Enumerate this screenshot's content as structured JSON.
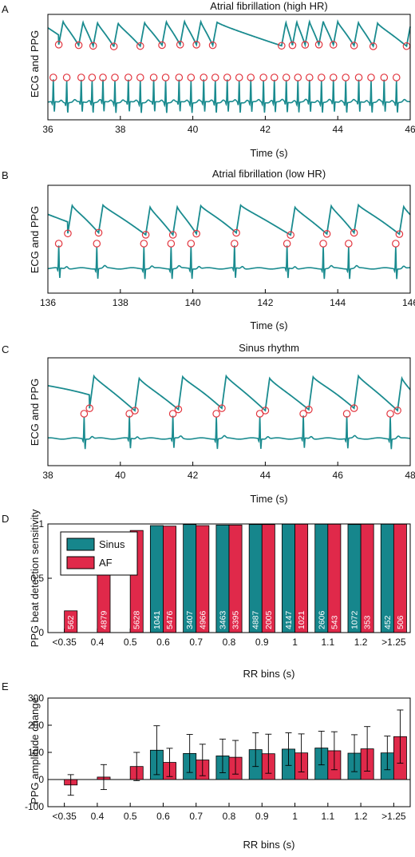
{
  "colors": {
    "trace": "#1a8b8f",
    "marker": "#e2363f",
    "sinus": "#16868c",
    "af": "#e0294a",
    "axis": "#000000"
  },
  "chart_data": [
    {
      "type": "line",
      "panel_label": "A",
      "title": "Atrial fibrillation (high HR)",
      "xlabel": "Time (s)",
      "ylabel": "ECG and PPG",
      "xlim": [
        36,
        46
      ],
      "xticks": [
        "36",
        "38",
        "40",
        "42",
        "44",
        "46"
      ],
      "series": [
        {
          "beats": [
            36.15,
            36.52,
            36.92,
            37.22,
            37.52,
            37.85,
            38.22,
            38.55,
            38.92,
            39.25,
            39.62,
            39.95,
            40.3,
            40.62,
            40.95,
            41.28,
            41.6,
            41.95,
            42.25,
            42.58,
            42.9,
            43.22,
            43.55,
            43.88,
            44.22,
            44.58,
            44.92,
            45.28,
            45.62
          ]
        },
        {
          "beats": [
            36.3,
            36.85,
            37.25,
            37.82,
            38.55,
            39.15,
            39.65,
            40.1,
            40.55,
            42.45,
            42.75,
            43.1,
            43.48,
            43.88,
            44.45,
            44.98,
            45.9
          ]
        }
      ],
      "grid": false
    },
    {
      "type": "line",
      "panel_label": "B",
      "title": "Atrial fibrillation (low HR)",
      "xlabel": "Time (s)",
      "ylabel": "ECG and PPG",
      "xlim": [
        136,
        146
      ],
      "xticks": [
        "136",
        "138",
        "140",
        "142",
        "144",
        "146"
      ],
      "series": [
        {
          "beats": [
            136.3,
            137.35,
            138.65,
            139.4,
            139.95,
            141.15,
            142.6,
            143.6,
            144.3,
            145.6
          ]
        },
        {
          "beats": [
            136.55,
            137.4,
            138.7,
            139.45,
            140.1,
            141.2,
            142.7,
            143.7,
            144.45,
            145.7
          ]
        }
      ],
      "grid": false
    },
    {
      "type": "line",
      "panel_label": "C",
      "title": "Sinus rhythm",
      "xlabel": "Time (s)",
      "ylabel": "ECG and PPG",
      "xlim": [
        38,
        48
      ],
      "xticks": [
        "38",
        "40",
        "42",
        "44",
        "46",
        "48"
      ],
      "series": [
        {
          "beats": [
            39.0,
            40.25,
            41.45,
            42.65,
            43.85,
            45.05,
            46.25,
            47.45
          ]
        },
        {
          "beats": [
            39.15,
            40.4,
            41.6,
            42.8,
            44.0,
            45.2,
            46.45,
            47.65
          ]
        }
      ],
      "grid": false
    },
    {
      "type": "bar",
      "panel_label": "D",
      "xlabel": "RR bins (s)",
      "ylabel": "PPG beat detection sensitivity",
      "categories": [
        "<0.35",
        "0.4",
        "0.5",
        "0.6",
        "0.7",
        "0.8",
        "0.9",
        "1",
        "1.1",
        "1.2",
        ">1.25"
      ],
      "ylim": [
        0,
        1
      ],
      "yticks": [
        "0",
        "0.5",
        "1"
      ],
      "legend_position": "top-left",
      "series": [
        {
          "name": "Sinus",
          "values": [
            null,
            null,
            null,
            0.985,
            0.995,
            0.99,
            0.995,
            0.998,
            0.998,
            0.995,
            0.998
          ],
          "counts": [
            "",
            "",
            "",
            "1041",
            "3407",
            "3463",
            "4887",
            "4147",
            "2606",
            "1072",
            "452"
          ]
        },
        {
          "name": "AF",
          "values": [
            0.2,
            0.61,
            0.94,
            0.98,
            0.985,
            0.99,
            0.995,
            0.998,
            0.998,
            0.998,
            0.998
          ],
          "counts": [
            "562",
            "4879",
            "5628",
            "5476",
            "4966",
            "3395",
            "2005",
            "1021",
            "543",
            "353",
            "506"
          ]
        }
      ],
      "grid": false
    },
    {
      "type": "bar",
      "panel_label": "E",
      "xlabel": "RR bins (s)",
      "ylabel": "PPG amplitude change",
      "categories": [
        "<0.35",
        "0.4",
        "0.5",
        "0.6",
        "0.7",
        "0.8",
        "0.9",
        "1",
        "1.1",
        "1.2",
        ">1.25"
      ],
      "ylim": [
        -100,
        300
      ],
      "yticks": [
        "-100",
        "0",
        "100",
        "200",
        "300"
      ],
      "series": [
        {
          "name": "Sinus",
          "values": [
            null,
            null,
            null,
            108,
            96,
            87,
            110,
            112,
            116,
            97,
            98
          ],
          "err": [
            null,
            null,
            null,
            90,
            70,
            62,
            62,
            60,
            62,
            68,
            62
          ]
        },
        {
          "name": "AF",
          "values": [
            -20,
            9,
            48,
            63,
            72,
            82,
            95,
            98,
            106,
            113,
            158
          ],
          "err": [
            38,
            46,
            52,
            52,
            58,
            62,
            72,
            70,
            70,
            82,
            98
          ]
        }
      ],
      "grid": false
    }
  ]
}
